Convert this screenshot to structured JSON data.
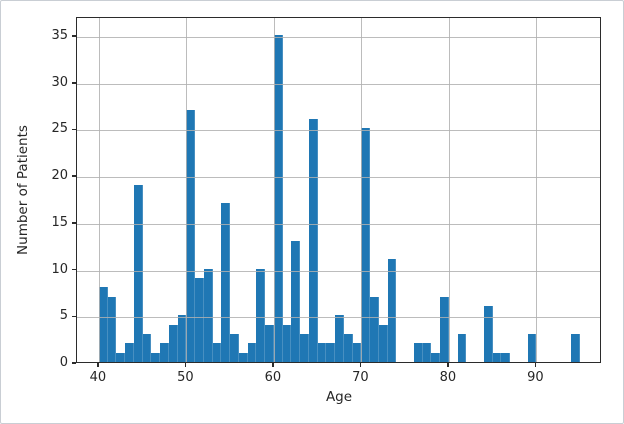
{
  "chart_data": {
    "type": "bar",
    "subtype": "histogram",
    "title": "",
    "xlabel": "Age",
    "ylabel": "Number of Patients",
    "bin_start": 40,
    "bin_width": 1,
    "bin_categories": [
      40,
      41,
      42,
      43,
      44,
      45,
      46,
      47,
      48,
      49,
      50,
      51,
      52,
      53,
      54,
      55,
      56,
      57,
      58,
      59,
      60,
      61,
      62,
      63,
      64,
      65,
      66,
      67,
      68,
      69,
      70,
      71,
      72,
      73,
      74,
      75,
      76,
      77,
      78,
      79,
      80,
      81,
      82,
      83,
      84,
      85,
      86,
      87,
      88,
      89,
      90,
      91,
      92,
      93,
      94
    ],
    "values": [
      8,
      7,
      1,
      2,
      19,
      3,
      1,
      2,
      4,
      5,
      27,
      9,
      10,
      2,
      17,
      3,
      1,
      2,
      10,
      4,
      35,
      4,
      13,
      3,
      26,
      2,
      2,
      5,
      3,
      2,
      25,
      7,
      4,
      11,
      0,
      0,
      2,
      2,
      1,
      7,
      0,
      3,
      0,
      0,
      6,
      1,
      1,
      0,
      0,
      3,
      0,
      0,
      0,
      0,
      3
    ],
    "xticks": [
      40,
      50,
      60,
      70,
      80,
      90
    ],
    "yticks": [
      0,
      5,
      10,
      15,
      20,
      25,
      30,
      35
    ],
    "xlim": [
      37.5,
      97.5
    ],
    "ylim": [
      0,
      37.04
    ],
    "grid": true,
    "grid_over_bars": true,
    "legend": null,
    "bar_color": "#1f77b4",
    "grid_color": "#b0b0b0",
    "spine_color": "#2b2b2b",
    "tick_label_color": "#262626",
    "background_color": "#ffffff",
    "frame_border_color": "#c9ced4"
  }
}
